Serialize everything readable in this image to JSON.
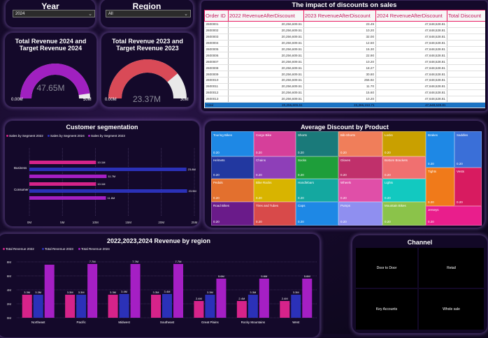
{
  "filters": {
    "year": {
      "title": "Year",
      "value": "2024"
    },
    "region": {
      "title": "Region",
      "value": "All"
    }
  },
  "gauge1": {
    "title": "Total Revenue 2024 and Target Revenue 2024",
    "value": "47.65M",
    "min": "0.00M",
    "max": "50M",
    "fraction": 0.953,
    "color": "#a020c0"
  },
  "gauge2": {
    "title": "Total Revenue 2023 and Target Revenue 2023",
    "value": "23.37M",
    "min": "0.00M",
    "max": "30M",
    "fraction": 0.779,
    "color": "#d94a57"
  },
  "table": {
    "title": "The impact of discounts on sales",
    "headers": [
      "Order ID",
      "2022 RevenueAfterDiscount",
      "2023 RevenueAfterDiscount",
      "2024 RevenueAfterDiscount",
      "Total Discount"
    ],
    "rows": [
      [
        "2600001",
        "20,256,609.51",
        "23.49",
        "47,648,528.81",
        ""
      ],
      [
        "2600002",
        "20,256,609.51",
        "10.20",
        "47,648,528.81",
        ""
      ],
      [
        "2600003",
        "20,256,609.51",
        "32.00",
        "47,648,528.81",
        ""
      ],
      [
        "2600004",
        "20,256,609.51",
        "12.50",
        "47,648,528.81",
        ""
      ],
      [
        "2600005",
        "20,256,609.51",
        "15.30",
        "47,648,528.81",
        ""
      ],
      [
        "2600006",
        "20,256,609.51",
        "22.90",
        "47,648,528.81",
        ""
      ],
      [
        "2600007",
        "20,256,609.51",
        "10.20",
        "47,648,528.81",
        ""
      ],
      [
        "2600008",
        "20,256,609.51",
        "18.27",
        "47,648,528.81",
        ""
      ],
      [
        "2600009",
        "20,256,609.51",
        "30.80",
        "47,648,528.81",
        ""
      ],
      [
        "2600010",
        "20,256,609.51",
        "256.92",
        "47,648,528.81",
        ""
      ],
      [
        "2600011",
        "20,256,609.51",
        "11.70",
        "47,648,528.81",
        ""
      ],
      [
        "2600012",
        "20,256,609.51",
        "15.60",
        "47,648,528.81",
        ""
      ],
      [
        "2600013",
        "20,256,609.51",
        "10.20",
        "47,648,528.81",
        ""
      ]
    ],
    "total": [
      "Total",
      "20,256,609.51",
      "23,366,153.71",
      "47,648,528.81",
      ""
    ]
  },
  "segmentation": {
    "title": "Customer segmentation",
    "legend": [
      "Sales by Segment 2022",
      "Sales by Segment 2024",
      "Sales by Segment 2023"
    ],
    "colors": [
      "#d6238a",
      "#2b31b8",
      "#a51fc4"
    ]
  },
  "treemap": {
    "title": "Average Discount by Product",
    "tiles": [
      {
        "name": "Touring Bikes",
        "value": "0.20",
        "color": "#1e88e5"
      },
      {
        "name": "Cargo Bike",
        "value": "0.20",
        "color": "#d63f9a"
      },
      {
        "name": "Shorts",
        "value": "0.20",
        "color": "#1a7a7a"
      },
      {
        "name": "Bib-Shorts",
        "value": "0.20",
        "color": "#f07e5a"
      },
      {
        "name": "Locks",
        "value": "0.20",
        "color": "#c9a000"
      },
      {
        "name": "Helmets",
        "value": "0.20",
        "color": "#2238a0"
      },
      {
        "name": "Chains",
        "value": "0.20",
        "color": "#8e3fb8"
      },
      {
        "name": "Socks",
        "value": "0.20",
        "color": "#1e9e3a"
      },
      {
        "name": "Gloves",
        "value": "0.20",
        "color": "#c0306b"
      },
      {
        "name": "Bottom Brackets",
        "value": "0.20",
        "color": "#f07070"
      },
      {
        "name": "Pedals",
        "value": "0.20",
        "color": "#e3702e"
      },
      {
        "name": "Bike Racks",
        "value": "0.20",
        "color": "#d8b400"
      },
      {
        "name": "Handlebars",
        "value": "0.20",
        "color": "#14a8a0"
      },
      {
        "name": "Wheels",
        "value": "0.20",
        "color": "#e04fa8"
      },
      {
        "name": "Lights",
        "value": "0.20",
        "color": "#12c9c0"
      },
      {
        "name": "Road Bikes",
        "value": "0.20",
        "color": "#6a1b8a"
      },
      {
        "name": "Tires and Tubes",
        "value": "0.20",
        "color": "#d84a4a"
      },
      {
        "name": "Caps",
        "value": "0.20",
        "color": "#1e88e5"
      },
      {
        "name": "Pumps",
        "value": "0.20",
        "color": "#8f8ff0"
      },
      {
        "name": "Mountain Bikes",
        "value": "0.20",
        "color": "#8bc34a"
      },
      {
        "name": "Brakes",
        "value": "0.20",
        "color": "#1e88e5"
      },
      {
        "name": "Saddles",
        "value": "0.20",
        "color": "#3a6fd8"
      },
      {
        "name": "Tights",
        "value": "0.20",
        "color": "#f07a1a"
      },
      {
        "name": "Vests",
        "value": "0.20",
        "color": "#d81b60"
      },
      {
        "name": "Jerseys",
        "value": "0.20",
        "color": "#e91e8c"
      }
    ]
  },
  "channel": {
    "title": "Channel",
    "items": [
      "Door to Door",
      "Retail",
      "Key Accounts",
      "Whole sale"
    ]
  },
  "chart_data": [
    {
      "type": "bar",
      "title": "Customer segmentation",
      "orientation": "horizontal",
      "categories": [
        "Business",
        "Consumer"
      ],
      "series": [
        {
          "name": "Sales by Segment 2022",
          "values": [
            10.1,
            10.1
          ],
          "labels": [
            "10.1M",
            "10.1M"
          ]
        },
        {
          "name": "Sales by Segment 2024",
          "values": [
            23.8,
            23.9
          ],
          "labels": [
            "23.8M",
            "23.9M"
          ]
        },
        {
          "name": "Sales by Segment 2023",
          "values": [
            11.7,
            11.6
          ],
          "labels": [
            "11.7M",
            "11.6M"
          ]
        }
      ],
      "xticks": [
        "0M",
        "5M",
        "10M",
        "15M",
        "20M",
        "25M"
      ],
      "xlim": [
        0,
        25
      ]
    },
    {
      "type": "bar",
      "title": "2022,2023,2024 Revenue by region",
      "categories": [
        "Northeast",
        "Pacific",
        "Midwest",
        "Southeast",
        "Great Plains",
        "Rocky Mountains",
        "West"
      ],
      "series": [
        {
          "name": "Total Revenue 2022",
          "values": [
            3.3,
            3.3,
            3.3,
            3.3,
            2.4,
            2.4,
            2.4
          ],
          "labels": [
            "3.3M",
            "3.3M",
            "3.3M",
            "3.3M",
            "2.4M",
            "2.4M",
            "2.4M"
          ]
        },
        {
          "name": "Total Revenue 2023",
          "values": [
            3.3,
            3.3,
            3.4,
            3.4,
            3.3,
            3.3,
            3.3
          ],
          "labels": [
            "3.3M",
            "3.3M",
            "3.4M",
            "3.4M",
            "3.3M",
            "3.3M",
            "3.3M"
          ]
        },
        {
          "name": "Total Revenue 2024",
          "values": [
            7.6,
            7.7,
            7.7,
            7.7,
            5.6,
            5.6,
            5.6
          ],
          "labels": [
            "",
            "7.7M",
            "7.7M",
            "7.7M",
            "5.6M",
            "5.6M",
            "5.6M"
          ]
        }
      ],
      "yticks": [
        "0M",
        "2M",
        "4M",
        "6M",
        "8M"
      ],
      "ylim": [
        0,
        8
      ],
      "colors": [
        "#d6238a",
        "#2b31b8",
        "#a51fc4"
      ]
    }
  ]
}
